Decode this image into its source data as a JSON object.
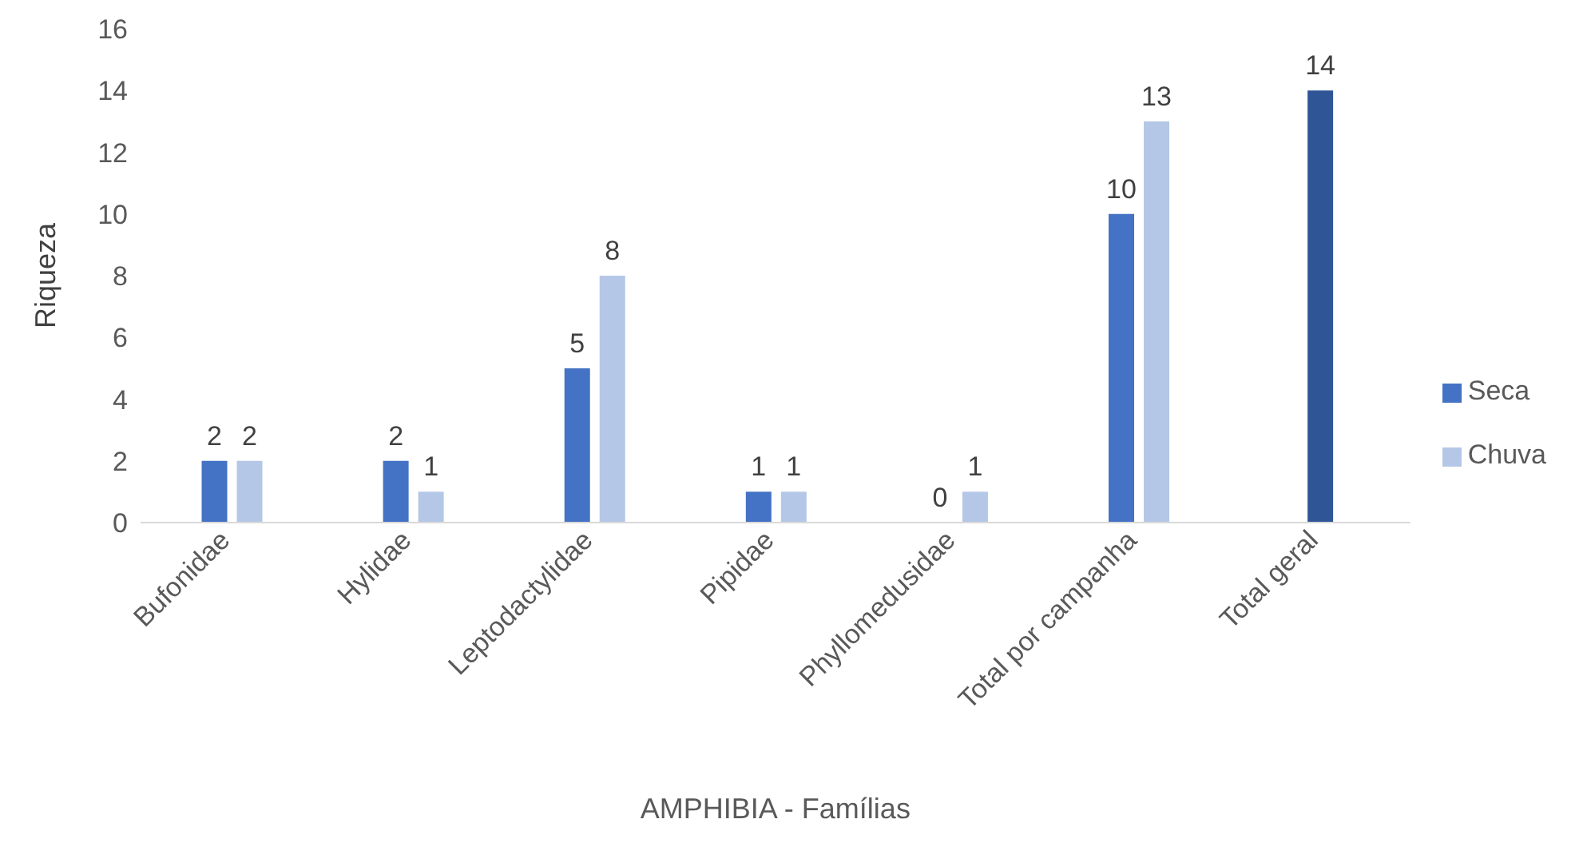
{
  "chart_data": {
    "type": "bar",
    "xlabel": "AMPHIBIA - Famílias",
    "ylabel": "Riqueza",
    "categories": [
      "Bufonidae",
      "Hylidae",
      "Leptodactylidae",
      "Pipidae",
      "Phyllomedusidae",
      "Total por campanha",
      "Total geral"
    ],
    "series": [
      {
        "name": "Seca",
        "color": "#4472c4",
        "values": [
          2,
          2,
          5,
          1,
          0,
          10,
          null
        ]
      },
      {
        "name": "Chuva",
        "color": "#b4c7e7",
        "values": [
          2,
          1,
          8,
          1,
          1,
          13,
          null
        ]
      },
      {
        "color": "#2f5597",
        "values": [
          null,
          null,
          null,
          null,
          null,
          null,
          14
        ]
      }
    ],
    "ylim": [
      0,
      16
    ],
    "yticks": [
      0,
      2,
      4,
      6,
      8,
      10,
      12,
      14,
      16
    ],
    "grid": false,
    "legend": "right",
    "data_labels": true
  }
}
